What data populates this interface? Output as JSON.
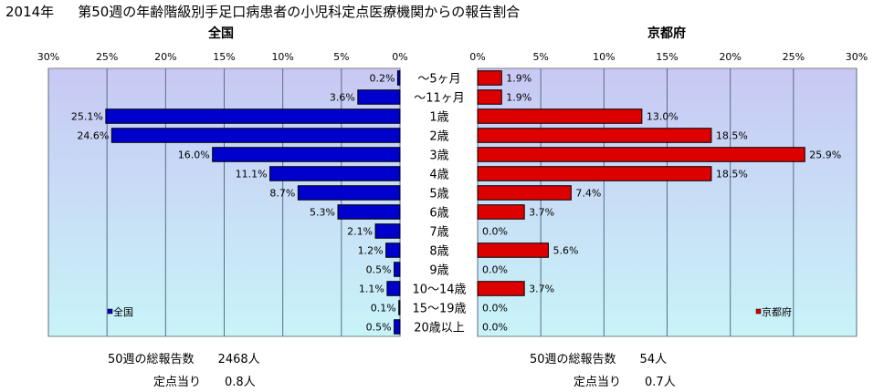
{
  "title_year": "2014年",
  "title_main": "第50週の年齢階級別手足口病患者の小児科定点医療機関からの報告割合",
  "left_panel": {
    "title": "全国",
    "legend": "全国",
    "footer_total_label": "50週の総報告数",
    "footer_total_value": "2468人",
    "footer_per_label": "定点当り",
    "footer_per_value": "0.8人"
  },
  "right_panel": {
    "title": "京都府",
    "legend": "京都府",
    "footer_total_label": "50週の総報告数",
    "footer_total_value": "54人",
    "footer_per_label": "定点当り",
    "footer_per_value": "0.7人"
  },
  "colors": {
    "national": "#0000cc",
    "kyoto": "#dd0000",
    "plot_top": "#c8c8f4",
    "plot_bottom": "#c8f4f8",
    "grid": "#5a6e84"
  },
  "chart_data": [
    {
      "type": "bar",
      "orientation": "horizontal",
      "direction": "right-to-left",
      "title": "全国",
      "categories": [
        "～5ヶ月",
        "～11ヶ月",
        "1歳",
        "2歳",
        "3歳",
        "4歳",
        "5歳",
        "6歳",
        "7歳",
        "8歳",
        "9歳",
        "10～14歳",
        "15～19歳",
        "20歳以上"
      ],
      "series": [
        {
          "name": "全国",
          "values": [
            0.2,
            3.6,
            25.1,
            24.6,
            16.0,
            11.1,
            8.7,
            5.3,
            2.1,
            1.2,
            0.5,
            1.1,
            0.1,
            0.5
          ],
          "labels": [
            "0.2%",
            "3.6%",
            "25.1%",
            "24.6%",
            "16.0%",
            "11.1%",
            "8.7%",
            "5.3%",
            "2.1%",
            "1.2%",
            "0.5%",
            "1.1%",
            "0.1%",
            "0.5%"
          ]
        }
      ],
      "xlim": [
        0,
        30
      ],
      "ticks": [
        "0%",
        "5%",
        "10%",
        "15%",
        "20%",
        "25%",
        "30%"
      ],
      "grid": true,
      "legend_position": "bottom-left"
    },
    {
      "type": "bar",
      "orientation": "horizontal",
      "direction": "left-to-right",
      "title": "京都府",
      "categories": [
        "～5ヶ月",
        "～11ヶ月",
        "1歳",
        "2歳",
        "3歳",
        "4歳",
        "5歳",
        "6歳",
        "7歳",
        "8歳",
        "9歳",
        "10～14歳",
        "15～19歳",
        "20歳以上"
      ],
      "series": [
        {
          "name": "京都府",
          "values": [
            1.9,
            1.9,
            13.0,
            18.5,
            25.9,
            18.5,
            7.4,
            3.7,
            0.0,
            5.6,
            0.0,
            3.7,
            0.0,
            0.0
          ],
          "labels": [
            "1.9%",
            "1.9%",
            "13.0%",
            "18.5%",
            "25.9%",
            "18.5%",
            "7.4%",
            "3.7%",
            "0.0%",
            "5.6%",
            "0.0%",
            "3.7%",
            "0.0%",
            "0.0%"
          ]
        }
      ],
      "xlim": [
        0,
        30
      ],
      "ticks": [
        "0%",
        "5%",
        "10%",
        "15%",
        "20%",
        "25%",
        "30%"
      ],
      "grid": true,
      "legend_position": "bottom-right"
    }
  ]
}
